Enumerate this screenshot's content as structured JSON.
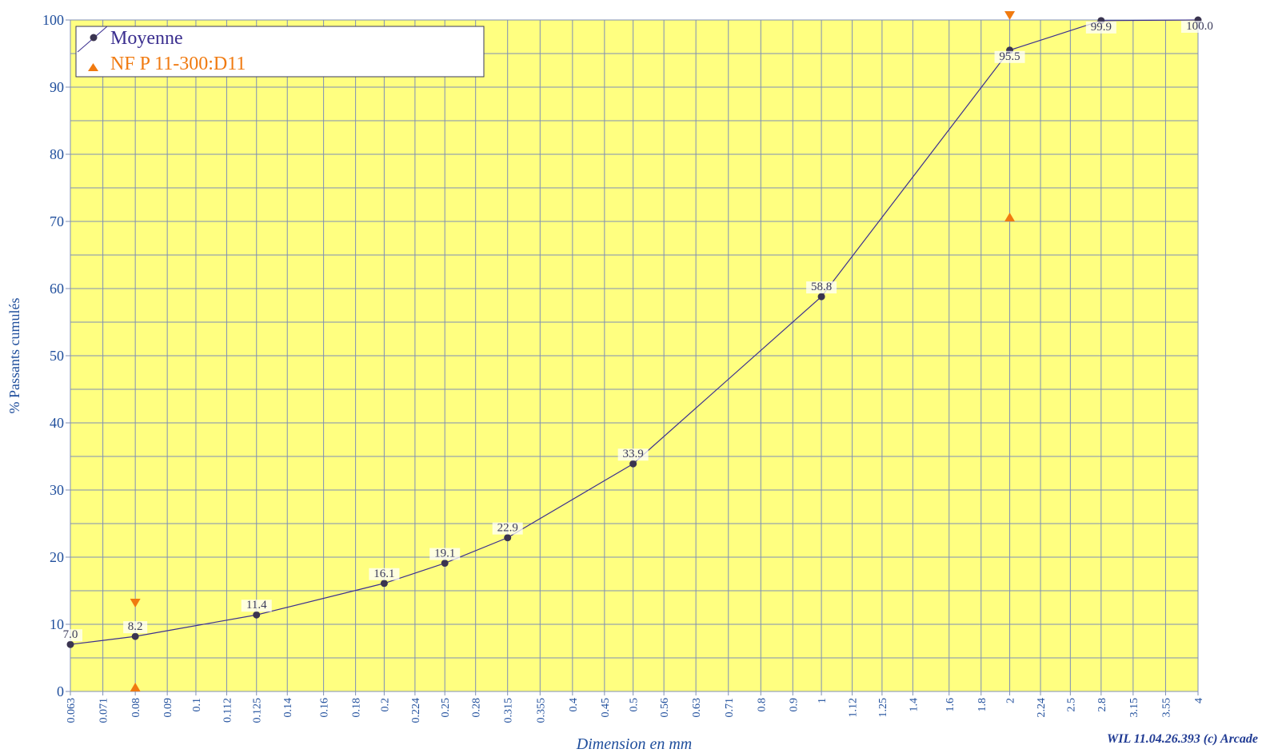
{
  "chart_data": {
    "type": "line",
    "xlabel": "Dimension en mm",
    "ylabel": "% Passants cumulés",
    "ylim": [
      0,
      100
    ],
    "y_ticks": [
      "0",
      "10",
      "20",
      "30",
      "40",
      "50",
      "60",
      "70",
      "80",
      "90",
      "100"
    ],
    "x_scale": "log",
    "x_ticks": [
      "0.063",
      "0.071",
      "0.08",
      "0.09",
      "0.1",
      "0.112",
      "0.125",
      "0.14",
      "0.16",
      "0.18",
      "0.2",
      "0.224",
      "0.25",
      "0.28",
      "0.315",
      "0.355",
      "0.4",
      "0.45",
      "0.5",
      "0.56",
      "0.63",
      "0.71",
      "0.8",
      "0.9",
      "1",
      "1.12",
      "1.25",
      "1.4",
      "1.6",
      "1.8",
      "2",
      "2.24",
      "2.5",
      "2.8",
      "3.15",
      "3.55",
      "4"
    ],
    "grid": true,
    "legend_position": "top-left",
    "plot_background": "#ffff80",
    "series": [
      {
        "name": "Moyenne",
        "color": "#3b2f8f",
        "marker": "circle",
        "x": [
          0.063,
          0.08,
          0.125,
          0.2,
          0.25,
          0.315,
          0.5,
          1,
          2,
          2.8,
          4
        ],
        "y": [
          7.0,
          8.2,
          11.4,
          16.1,
          19.1,
          22.9,
          33.9,
          58.8,
          95.5,
          99.9,
          100.0
        ],
        "labels": [
          "7.0",
          "8.2",
          "11.4",
          "16.1",
          "19.1",
          "22.9",
          "33.9",
          "58.8",
          "95.5",
          "99.9",
          "100.0"
        ]
      },
      {
        "name": "NF P 11-300:D11",
        "color": "#f07a10",
        "marker": "triangle",
        "points": [
          {
            "x": 0.08,
            "y": 12.5,
            "direction": "down"
          },
          {
            "x": 0.08,
            "y": 0,
            "direction": "up"
          },
          {
            "x": 2,
            "y": 100,
            "direction": "down"
          },
          {
            "x": 2,
            "y": 70,
            "direction": "up"
          }
        ]
      }
    ]
  },
  "footer": {
    "credit": "WIL 11.04.26.393 (c) Arcade"
  }
}
